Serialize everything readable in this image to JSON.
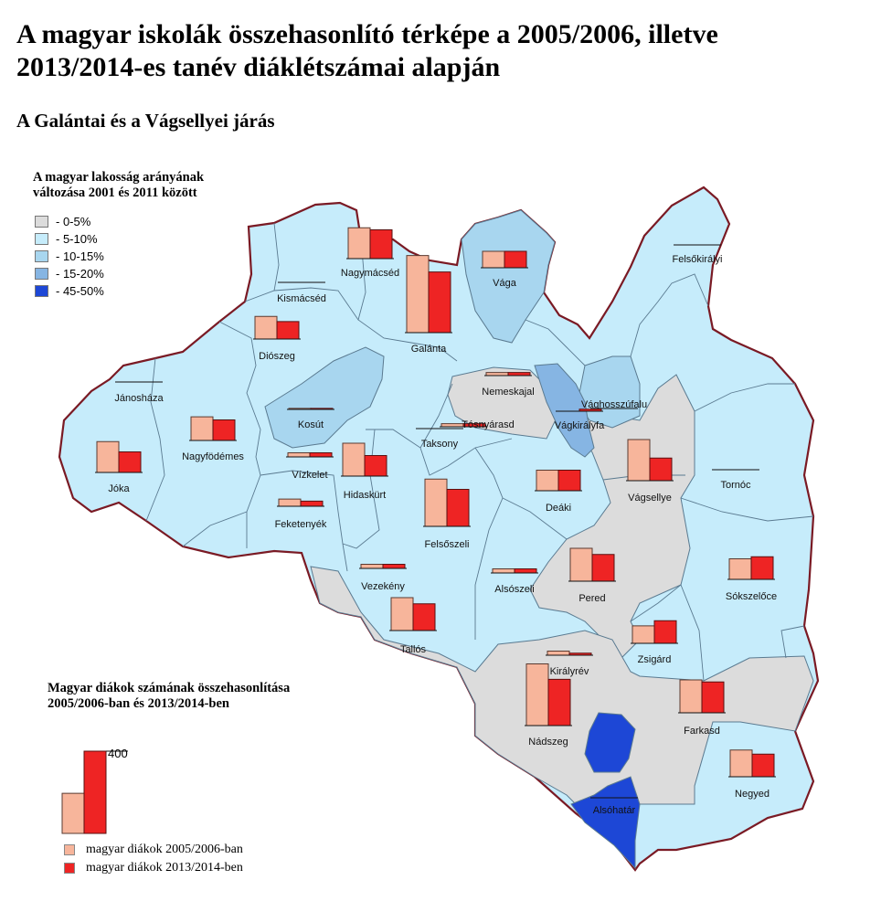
{
  "title": "A magyar iskolák összehasonlító térképe a 2005/2006, illetve 2013/2014-es tanév diáklétszámai alapján",
  "subtitle": "A Galántai és a Vágsellyei járás",
  "legend_change": {
    "title_line1": "A magyar lakosság arányának",
    "title_line2": "változása 2001 és 2011 között",
    "items": [
      {
        "label": "- 0-5%",
        "color": "#dcdcdc"
      },
      {
        "label": "- 5-10%",
        "color": "#c6ecfb"
      },
      {
        "label": "- 10-15%",
        "color": "#a8d6ef"
      },
      {
        "label": "- 15-20%",
        "color": "#86b5e3"
      },
      {
        "label": "- 45-50%",
        "color": "#1d47d6"
      }
    ]
  },
  "legend_students": {
    "title_line1": "Magyar diákok számának összehasonlítása",
    "title_line2": "2005/2006-ban és 2013/2014-ben",
    "scale_label": "400",
    "scale_value": 400,
    "series": [
      {
        "label": "magyar diákok 2005/2006-ban",
        "color": "#f7b59b"
      },
      {
        "label": "magyar diákok 2013/2014-ben",
        "color": "#ee2424"
      }
    ]
  },
  "map": {
    "border_color": "#7a1a24",
    "inner_border_color": "#5a7a90"
  },
  "towns": [
    {
      "name": "Felsőkirályi",
      "category": "5-10%",
      "students_2005": 0,
      "students_2013": 0
    },
    {
      "name": "Nagymácséd",
      "category": "5-10%",
      "students_2005": 150,
      "students_2013": 140
    },
    {
      "name": "Kismácséd",
      "category": "5-10%",
      "students_2005": 0,
      "students_2013": 0
    },
    {
      "name": "Vága",
      "category": "10-15%",
      "students_2005": 80,
      "students_2013": 80
    },
    {
      "name": "Diószeg",
      "category": "5-10%",
      "students_2005": 110,
      "students_2013": 85
    },
    {
      "name": "Galánta",
      "category": "5-10%",
      "students_2005": 375,
      "students_2013": 295
    },
    {
      "name": "Jánosháza",
      "category": "5-10%",
      "students_2005": 0,
      "students_2013": 0
    },
    {
      "name": "Kosút",
      "category": "10-15%",
      "students_2005": 5,
      "students_2013": 5
    },
    {
      "name": "Nemeskajal",
      "category": "0-5%",
      "students_2005": 15,
      "students_2013": 15
    },
    {
      "name": "Vághosszúfalu",
      "category": "10-15%",
      "students_2005": 0,
      "students_2013": 0
    },
    {
      "name": "Vágkirályfa",
      "category": "15-20%",
      "students_2005": 0,
      "students_2013": 10
    },
    {
      "name": "Tósnyárasd",
      "category": "5-10%",
      "students_2005": 15,
      "students_2013": 15
    },
    {
      "name": "Taksony",
      "category": "5-10%",
      "students_2005": 0,
      "students_2013": 0
    },
    {
      "name": "Nagyfödémes",
      "category": "5-10%",
      "students_2005": 115,
      "students_2013": 100
    },
    {
      "name": "Jóka",
      "category": "5-10%",
      "students_2005": 150,
      "students_2013": 100
    },
    {
      "name": "Vízkelet",
      "category": "5-10%",
      "students_2005": 20,
      "students_2013": 20
    },
    {
      "name": "Hidaskürt",
      "category": "5-10%",
      "students_2005": 160,
      "students_2013": 100
    },
    {
      "name": "Vágsellye",
      "category": "0-5%",
      "students_2005": 200,
      "students_2013": 110
    },
    {
      "name": "Tornóc",
      "category": "5-10%",
      "students_2005": 0,
      "students_2013": 0
    },
    {
      "name": "Deáki",
      "category": "5-10%",
      "students_2005": 100,
      "students_2013": 100
    },
    {
      "name": "Feketenyék",
      "category": "5-10%",
      "students_2005": 35,
      "students_2013": 25
    },
    {
      "name": "Felsőszeli",
      "category": "5-10%",
      "students_2005": 230,
      "students_2013": 180
    },
    {
      "name": "Alsószeli",
      "category": "5-10%",
      "students_2005": 20,
      "students_2013": 20
    },
    {
      "name": "Vezekény",
      "category": "5-10%",
      "students_2005": 20,
      "students_2013": 20
    },
    {
      "name": "Pered",
      "category": "0-5%",
      "students_2005": 160,
      "students_2013": 130
    },
    {
      "name": "Sókszelőce",
      "category": "5-10%",
      "students_2005": 100,
      "students_2013": 110
    },
    {
      "name": "Tallós",
      "category": "0-5%",
      "students_2005": 160,
      "students_2013": 130
    },
    {
      "name": "Zsigárd",
      "category": "5-10%",
      "students_2005": 85,
      "students_2013": 110
    },
    {
      "name": "Királyrév",
      "category": "0-5%",
      "students_2005": 20,
      "students_2013": 10
    },
    {
      "name": "Nádszeg",
      "category": "0-5%",
      "students_2005": 300,
      "students_2013": 225
    },
    {
      "name": "Farkasd",
      "category": "0-5%",
      "students_2005": 160,
      "students_2013": 150
    },
    {
      "name": "Alsóhatár",
      "category": "45-50%",
      "students_2005": 0,
      "students_2013": 0
    },
    {
      "name": "Negyed",
      "category": "5-10%",
      "students_2005": 130,
      "students_2013": 110
    }
  ]
}
